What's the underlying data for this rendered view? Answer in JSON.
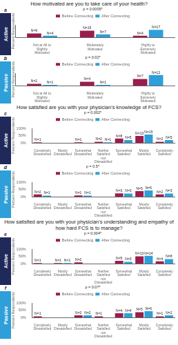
{
  "chart_data": [
    {
      "type": "bar",
      "panel": "a",
      "group": "Active",
      "title": "How motivated are you to take care of your health?",
      "subtitle": "p = 0.0005*",
      "y_label": "Percent Respondents",
      "categories": [
        "Not at All to Slightly Motivated",
        "Moderately Motivated",
        "Highly to Extremely Motivated"
      ],
      "series": [
        {
          "name": "Before Connecting",
          "color": "#9b1c4e",
          "values": [
            32,
            54,
            14
          ],
          "value_labels": [
            "N=9",
            "N=15",
            "N=4"
          ]
        },
        {
          "name": "After Connecting",
          "color": "#2e9fd8",
          "values": [
            14,
            25,
            61
          ],
          "value_labels": [
            "N=4",
            "N=7",
            "N=17"
          ]
        }
      ],
      "ylim": [
        0,
        100
      ],
      "grid": false,
      "legend": "top",
      "data_labels": true,
      "tick_labels": "x"
    },
    {
      "type": "bar",
      "panel": "b",
      "group": "Passive",
      "subtitle": "p = 0.02*",
      "y_label": "Percent Respondents",
      "categories": [
        "Not at All to Slightly Motivated",
        "Moderately Motivated",
        "Highly to Extremely Motivated"
      ],
      "series": [
        {
          "name": "Before Connecting",
          "color": "#9b1c4e",
          "values": [
            15,
            31,
            54
          ],
          "value_labels": [
            "N=2",
            "N=4",
            "N=7"
          ]
        },
        {
          "name": "After Connecting",
          "color": "#2e9fd8",
          "values": [
            7,
            7,
            86
          ],
          "value_labels": [
            "N=1",
            "N=1",
            "N=12"
          ]
        }
      ],
      "ylim": [
        0,
        100
      ],
      "grid": false,
      "legend": "top",
      "data_labels": true,
      "tick_labels": "x"
    },
    {
      "type": "bar",
      "panel": "c",
      "group": "Active",
      "title": "How satisfied are you with your physician's knowledge of FCS?",
      "subtitle": "p = 0.002*",
      "y_label": "Percent Respondents",
      "categories": [
        "Completely Dissatisfied",
        "Mostly Dissatisfied",
        "Somewhat Dissatisfied",
        "Neither Satisfied nor Dissatisfied",
        "Somewhat Satisfied",
        "Mostly Satisfied",
        "Completely Satisfied"
      ],
      "series": [
        {
          "name": "Before Connecting",
          "color": "#9b1c4e",
          "values": [
            4,
            0,
            4,
            7,
            30,
            48,
            7
          ],
          "value_labels": [
            "N=1",
            null,
            "N=1",
            "N=2",
            "N=8",
            "N=13",
            "N=2"
          ]
        },
        {
          "name": "After Connecting",
          "color": "#2e9fd8",
          "values": [
            0,
            0,
            0,
            4,
            19,
            58,
            19
          ],
          "value_labels": [
            null,
            null,
            null,
            "N=1",
            "N=5",
            "N=15",
            "N=5"
          ]
        }
      ],
      "ylim": [
        0,
        100
      ],
      "yticks": [
        {
          "value": 0,
          "label": "0%"
        },
        {
          "value": 50,
          "label": "50%"
        },
        {
          "value": 100,
          "label": "100%"
        }
      ],
      "grid": false,
      "legend": "top",
      "data_labels": true
    },
    {
      "type": "bar",
      "panel": "d",
      "group": "Passive",
      "subtitle": "p = 0.5*",
      "y_label": "Percent Respondents",
      "categories": [
        "Completely Dissatisfied",
        "Mostly Dissatisfied",
        "Somewhat Dissatisfied",
        "Neither Satisfied nor Dissatisfied",
        "Somewhat Satisfied",
        "Mostly Satisfied",
        "Completely Satisfied"
      ],
      "series": [
        {
          "name": "Before Connecting",
          "color": "#9b1c4e",
          "values": [
            15,
            0,
            8,
            0,
            23,
            38,
            15
          ],
          "value_labels": [
            "N=2",
            null,
            "N=1",
            null,
            "N=3",
            "N=5",
            "N=2"
          ]
        },
        {
          "name": "After Connecting",
          "color": "#2e9fd8",
          "values": [
            7,
            0,
            7,
            0,
            21,
            43,
            21
          ],
          "value_labels": [
            "N=1",
            null,
            "N=1",
            null,
            "N=3",
            "N=6",
            "N=3"
          ]
        }
      ],
      "ylim": [
        0,
        100
      ],
      "yticks": [
        {
          "value": 0,
          "label": "0%"
        },
        {
          "value": 50,
          "label": "50%"
        },
        {
          "value": 100,
          "label": "100%"
        }
      ],
      "grid": false,
      "legend": "top",
      "data_labels": true
    },
    {
      "type": "bar",
      "panel": "e",
      "group": "Active",
      "title": "How satisfied are you with your physician's understanding and empathy of how hard FCS is to manage?",
      "subtitle": "p = 0.004*",
      "y_label": "Percent Respondents",
      "categories": [
        "Completely Dissatisfied",
        "Mostly Dissatisfied",
        "Somewhat Dissatisfied",
        "Neither Satisfied nor Dissatisfied",
        "Somewhat Satisfied",
        "Mostly Satisfied",
        "Completely Satisfied"
      ],
      "series": [
        {
          "name": "Before Connecting",
          "color": "#9b1c4e",
          "values": [
            4,
            4,
            8,
            0,
            19,
            50,
            15
          ],
          "value_labels": [
            "N=1",
            "N=1",
            "N=2",
            null,
            "N=5",
            "N=13",
            "N=4"
          ]
        },
        {
          "name": "After Connecting",
          "color": "#2e9fd8",
          "values": [
            0,
            4,
            0,
            0,
            12,
            54,
            31
          ],
          "value_labels": [
            null,
            "N=1",
            null,
            null,
            "N=3",
            "N=14",
            "N=8"
          ]
        }
      ],
      "ylim": [
        0,
        100
      ],
      "yticks": [
        {
          "value": 0,
          "label": "0%"
        },
        {
          "value": 50,
          "label": "50%"
        },
        {
          "value": 100,
          "label": "100%"
        }
      ],
      "grid": false,
      "legend": "top",
      "data_labels": true
    },
    {
      "type": "bar",
      "panel": "f",
      "group": "Passive",
      "subtitle": "p = 0.07*",
      "y_label": "Percent Respondents",
      "categories": [
        "Completely Dissatisfied",
        "Mostly Dissatisfied",
        "Somewhat Dissatisfied",
        "Neither Satisfied nor Dissatisfied",
        "Somewhat Satisfied",
        "Mostly Satisfied",
        "Completely Satisfied"
      ],
      "series": [
        {
          "name": "Before Connecting",
          "color": "#9b1c4e",
          "values": [
            7,
            0,
            14,
            7,
            29,
            36,
            7
          ],
          "value_labels": [
            "N=1",
            null,
            "N=2",
            "N=1",
            "N=4",
            "N=5",
            "N=1"
          ]
        },
        {
          "name": "After Connecting",
          "color": "#2e9fd8",
          "values": [
            0,
            0,
            14,
            0,
            29,
            43,
            14
          ],
          "value_labels": [
            null,
            null,
            "N=2",
            null,
            "N=4",
            "N=6",
            "N=2"
          ]
        }
      ],
      "ylim": [
        0,
        100
      ],
      "yticks": [
        {
          "value": 0,
          "label": "0%"
        },
        {
          "value": 50,
          "label": "50%"
        },
        {
          "value": 100,
          "label": "100%"
        }
      ],
      "grid": false,
      "legend": "top",
      "data_labels": true
    }
  ]
}
